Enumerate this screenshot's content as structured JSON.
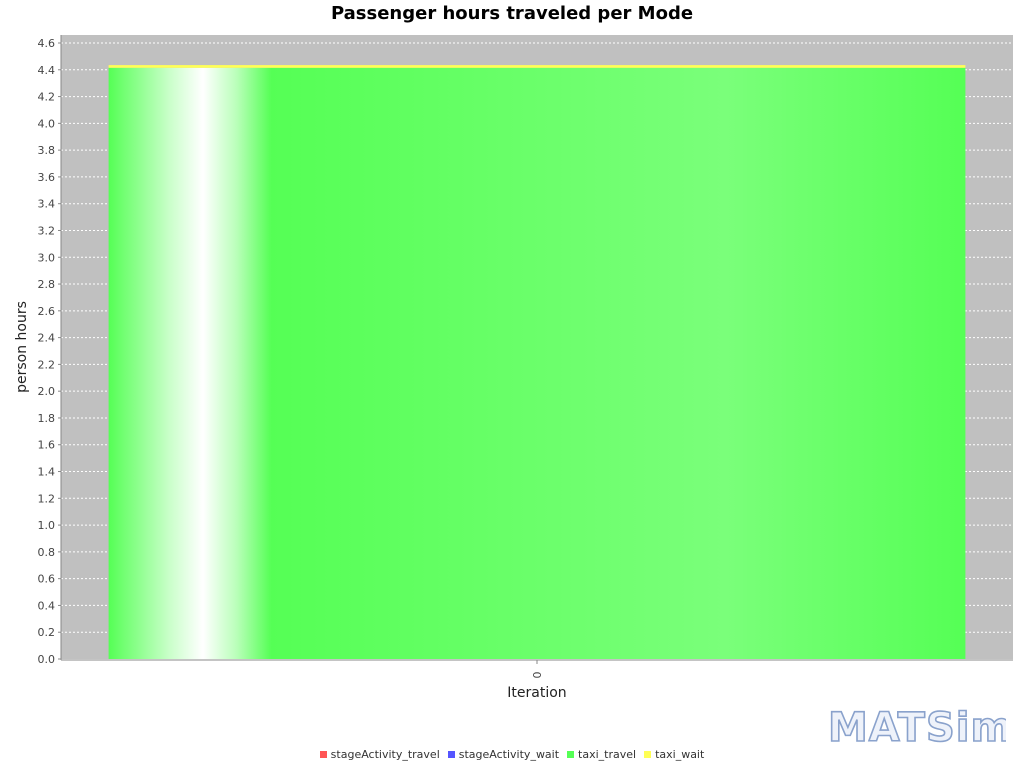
{
  "chart_data": {
    "type": "bar",
    "stacked": true,
    "title": "Passenger hours traveled per Mode",
    "xlabel": "Iteration",
    "ylabel": "person hours",
    "categories": [
      "0"
    ],
    "ylim": [
      0,
      4.6
    ],
    "yticks": [
      "0.0",
      "0.2",
      "0.4",
      "0.6",
      "0.8",
      "1.0",
      "1.2",
      "1.4",
      "1.6",
      "1.8",
      "2.0",
      "2.2",
      "2.4",
      "2.6",
      "2.8",
      "3.0",
      "3.2",
      "3.4",
      "3.6",
      "3.8",
      "4.0",
      "4.2",
      "4.4",
      "4.6"
    ],
    "grid": true,
    "legend_position": "bottom",
    "series": [
      {
        "name": "stageActivity_travel",
        "color": "#ff5555",
        "values": [
          0
        ]
      },
      {
        "name": "stageActivity_wait",
        "color": "#5555ff",
        "values": [
          0
        ]
      },
      {
        "name": "taxi_travel",
        "color": "#55ff55",
        "values": [
          4.415
        ]
      },
      {
        "name": "taxi_wait",
        "color": "#ffff55",
        "values": [
          0.02
        ]
      }
    ]
  },
  "logo": {
    "text": "MATSim"
  }
}
